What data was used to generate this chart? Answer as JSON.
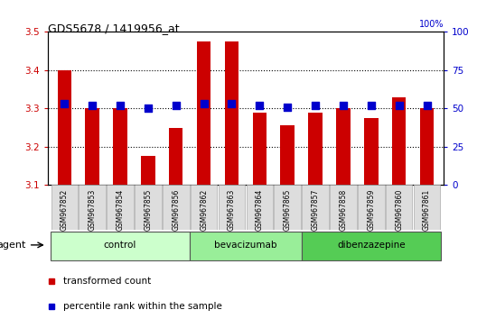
{
  "title": "GDS5678 / 1419956_at",
  "samples": [
    "GSM967852",
    "GSM967853",
    "GSM967854",
    "GSM967855",
    "GSM967856",
    "GSM967862",
    "GSM967863",
    "GSM967864",
    "GSM967865",
    "GSM967857",
    "GSM967858",
    "GSM967859",
    "GSM967860",
    "GSM967861"
  ],
  "transformed_count": [
    3.4,
    3.3,
    3.3,
    3.175,
    3.25,
    3.475,
    3.475,
    3.29,
    3.255,
    3.29,
    3.3,
    3.275,
    3.33,
    3.3
  ],
  "percentile_rank": [
    53,
    52,
    52,
    50,
    52,
    53,
    53,
    52,
    51,
    52,
    52,
    52,
    52,
    52
  ],
  "groups": [
    {
      "name": "control",
      "indices": [
        0,
        1,
        2,
        3,
        4
      ],
      "color": "#ccffcc"
    },
    {
      "name": "bevacizumab",
      "indices": [
        5,
        6,
        7,
        8
      ],
      "color": "#99ee99"
    },
    {
      "name": "dibenzazepine",
      "indices": [
        9,
        10,
        11,
        12,
        13
      ],
      "color": "#55cc55"
    }
  ],
  "ylim_left": [
    3.1,
    3.5
  ],
  "ylim_right": [
    0,
    100
  ],
  "yticks_left": [
    3.1,
    3.2,
    3.3,
    3.4,
    3.5
  ],
  "yticks_right": [
    0,
    25,
    50,
    75,
    100
  ],
  "bar_color": "#cc0000",
  "dot_color": "#0000cc",
  "bar_width": 0.5,
  "dot_size": 30,
  "legend_items": [
    {
      "label": "transformed count",
      "color": "#cc0000"
    },
    {
      "label": "percentile rank within the sample",
      "color": "#0000cc"
    }
  ]
}
